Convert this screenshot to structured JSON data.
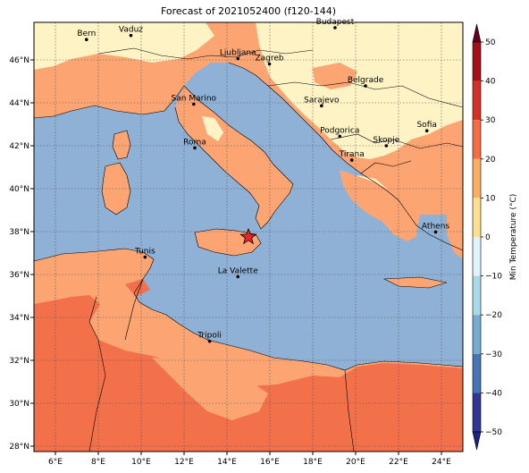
{
  "title": "Forecast of 2021052400 (f120-144)",
  "colorbar": {
    "label": "Min Temperature (°C)",
    "ticks": [
      "50",
      "40",
      "30",
      "20",
      "10",
      "0",
      "−10",
      "−20",
      "−30",
      "−40",
      "−50"
    ],
    "colors": [
      "#67001f",
      "#a50f15",
      "#d73027",
      "#f46d43",
      "#fdae61",
      "#fee090",
      "#e0f3f8",
      "#abd9e9",
      "#74add1",
      "#4575b4",
      "#313695",
      "#1a237e"
    ]
  },
  "axes": {
    "lon_labels": [
      "6°E",
      "8°E",
      "10°E",
      "12°E",
      "14°E",
      "16°E",
      "18°E",
      "20°E",
      "22°E",
      "24°E"
    ],
    "lat_labels": [
      "46°N",
      "44°N",
      "42°N",
      "40°N",
      "38°N",
      "36°N",
      "34°N",
      "32°N",
      "30°N",
      "28°N"
    ]
  },
  "colors": {
    "sea": "#8fb1d6",
    "land_warm": "#fca572",
    "land_hot": "#f2704a",
    "land_cool": "#fdf3c4",
    "land_light": "#fddfa0",
    "star": "#e8262a"
  },
  "cities": [
    {
      "name": "Bern",
      "lon": 7.45,
      "lat": 46.95
    },
    {
      "name": "Vaduz",
      "lon": 9.52,
      "lat": 47.14
    },
    {
      "name": "Budapest",
      "lon": 19.04,
      "lat": 47.5
    },
    {
      "name": "Ljubljana",
      "lon": 14.51,
      "lat": 46.06
    },
    {
      "name": "Zagreb",
      "lon": 15.98,
      "lat": 45.81
    },
    {
      "name": "San Marino",
      "lon": 12.45,
      "lat": 43.94
    },
    {
      "name": "Belgrade",
      "lon": 20.46,
      "lat": 44.79
    },
    {
      "name": "Sarajevo",
      "lon": 18.41,
      "lat": 43.86
    },
    {
      "name": "Sofia",
      "lon": 23.32,
      "lat": 42.7
    },
    {
      "name": "Podgorica",
      "lon": 19.26,
      "lat": 42.44
    },
    {
      "name": "Skopje",
      "lon": 21.43,
      "lat": 42.0
    },
    {
      "name": "Roma",
      "lon": 12.5,
      "lat": 41.9
    },
    {
      "name": "Tirana",
      "lon": 19.82,
      "lat": 41.33
    },
    {
      "name": "Athens",
      "lon": 23.73,
      "lat": 37.98
    },
    {
      "name": "Tunis",
      "lon": 10.18,
      "lat": 36.81
    },
    {
      "name": "La Valette",
      "lon": 14.51,
      "lat": 35.9
    },
    {
      "name": "Tripoli",
      "lon": 13.19,
      "lat": 32.89
    }
  ],
  "marker": {
    "type": "star",
    "lon": 15.0,
    "lat": 37.75
  }
}
